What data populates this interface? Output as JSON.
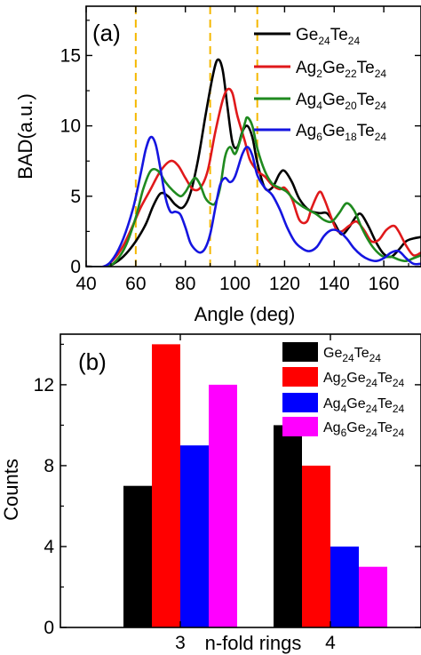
{
  "chart_data": [
    {
      "type": "line",
      "panel_label": "(a)",
      "xlabel": "Angle (deg)",
      "ylabel": "BAD(a.u.)",
      "xlim": [
        40,
        175
      ],
      "ylim": [
        0,
        18.5
      ],
      "xticks": [
        40,
        60,
        80,
        100,
        120,
        140,
        160
      ],
      "yticks": [
        0,
        5,
        10,
        15
      ],
      "legend_position": "top-right",
      "reference_lines": [
        {
          "x": 60,
          "color": "#f5b800",
          "style": "dashed"
        },
        {
          "x": 90,
          "color": "#f5b800",
          "style": "dashed"
        },
        {
          "x": 109,
          "color": "#f5b800",
          "style": "dashed"
        }
      ],
      "series": [
        {
          "name": "Ge24Te24",
          "legend": [
            {
              "t": "Ge"
            },
            {
              "t": "24",
              "sub": true
            },
            {
              "t": "Te"
            },
            {
              "t": "24",
              "sub": true
            }
          ],
          "color": "#000000",
          "points": [
            [
              40,
              0
            ],
            [
              48,
              0
            ],
            [
              52,
              0.3
            ],
            [
              56,
              0.9
            ],
            [
              60,
              1.8
            ],
            [
              64,
              3.0
            ],
            [
              67,
              4.3
            ],
            [
              70,
              5.2
            ],
            [
              73,
              5.0
            ],
            [
              76,
              4.4
            ],
            [
              79,
              4.2
            ],
            [
              82,
              5.2
            ],
            [
              85,
              7.5
            ],
            [
              88,
              10.6
            ],
            [
              91,
              13.5
            ],
            [
              93,
              14.7
            ],
            [
              95,
              14.0
            ],
            [
              97,
              11.3
            ],
            [
              99,
              8.8
            ],
            [
              101,
              8.5
            ],
            [
              103,
              9.6
            ],
            [
              105,
              10.0
            ],
            [
              107,
              9.2
            ],
            [
              109,
              7.4
            ],
            [
              112,
              5.6
            ],
            [
              115,
              5.6
            ],
            [
              118,
              6.6
            ],
            [
              120,
              6.8
            ],
            [
              123,
              6.0
            ],
            [
              126,
              4.8
            ],
            [
              130,
              4.0
            ],
            [
              134,
              3.8
            ],
            [
              137,
              3.8
            ],
            [
              140,
              3.1
            ],
            [
              143,
              2.3
            ],
            [
              146,
              2.8
            ],
            [
              149,
              3.6
            ],
            [
              151,
              3.7
            ],
            [
              154,
              2.8
            ],
            [
              157,
              1.7
            ],
            [
              160,
              0.9
            ],
            [
              163,
              0.7
            ],
            [
              166,
              1.2
            ],
            [
              169,
              1.8
            ],
            [
              172,
              2.0
            ],
            [
              175,
              2.1
            ]
          ]
        },
        {
          "name": "Ag2Ge22Te24",
          "legend": [
            {
              "t": "Ag"
            },
            {
              "t": "2",
              "sub": true
            },
            {
              "t": "Ge"
            },
            {
              "t": "22",
              "sub": true
            },
            {
              "t": "Te"
            },
            {
              "t": "24",
              "sub": true
            }
          ],
          "color": "#e0191b",
          "points": [
            [
              40,
              0
            ],
            [
              47,
              0
            ],
            [
              51,
              0.5
            ],
            [
              55,
              1.5
            ],
            [
              59,
              3.0
            ],
            [
              62,
              4.2
            ],
            [
              66,
              5.5
            ],
            [
              70,
              6.8
            ],
            [
              74,
              7.5
            ],
            [
              77,
              7.2
            ],
            [
              80,
              6.3
            ],
            [
              83,
              5.5
            ],
            [
              86,
              5.6
            ],
            [
              89,
              6.8
            ],
            [
              92,
              9.5
            ],
            [
              95,
              11.8
            ],
            [
              97,
              12.6
            ],
            [
              99,
              12.3
            ],
            [
              101,
              10.7
            ],
            [
              104,
              8.9
            ],
            [
              106,
              7.6
            ],
            [
              109,
              6.8
            ],
            [
              112,
              6.4
            ],
            [
              115,
              5.8
            ],
            [
              118,
              5.5
            ],
            [
              120,
              5.6
            ],
            [
              123,
              4.8
            ],
            [
              126,
              3.3
            ],
            [
              129,
              3.2
            ],
            [
              131,
              4.2
            ],
            [
              134,
              5.3
            ],
            [
              136,
              4.8
            ],
            [
              139,
              3.4
            ],
            [
              141,
              2.6
            ],
            [
              143,
              2.5
            ],
            [
              146,
              2.9
            ],
            [
              149,
              3.2
            ],
            [
              152,
              2.6
            ],
            [
              155,
              1.8
            ],
            [
              158,
              1.9
            ],
            [
              161,
              2.6
            ],
            [
              164,
              2.9
            ],
            [
              166,
              2.5
            ],
            [
              169,
              1.5
            ],
            [
              172,
              0.8
            ],
            [
              175,
              1.0
            ]
          ]
        },
        {
          "name": "Ag4Ge20Te24",
          "legend": [
            {
              "t": "Ag"
            },
            {
              "t": "4",
              "sub": true
            },
            {
              "t": "Ge"
            },
            {
              "t": "20",
              "sub": true
            },
            {
              "t": "Te"
            },
            {
              "t": "24",
              "sub": true
            }
          ],
          "color": "#1f8a1f",
          "points": [
            [
              40,
              0
            ],
            [
              48,
              0
            ],
            [
              52,
              0.4
            ],
            [
              56,
              1.5
            ],
            [
              60,
              3.5
            ],
            [
              63,
              5.5
            ],
            [
              66,
              6.8
            ],
            [
              69,
              6.8
            ],
            [
              72,
              6.0
            ],
            [
              75,
              5.4
            ],
            [
              78,
              5.0
            ],
            [
              80,
              5.3
            ],
            [
              82,
              5.9
            ],
            [
              84,
              6.3
            ],
            [
              86,
              5.8
            ],
            [
              88,
              4.9
            ],
            [
              90,
              4.5
            ],
            [
              92,
              4.5
            ],
            [
              94,
              5.6
            ],
            [
              96,
              7.8
            ],
            [
              98,
              8.5
            ],
            [
              100,
              8.0
            ],
            [
              102,
              8.9
            ],
            [
              104,
              10.2
            ],
            [
              105,
              10.6
            ],
            [
              107,
              10.0
            ],
            [
              109,
              8.4
            ],
            [
              112,
              6.8
            ],
            [
              115,
              5.9
            ],
            [
              118,
              5.6
            ],
            [
              121,
              5.3
            ],
            [
              124,
              4.7
            ],
            [
              127,
              4.3
            ],
            [
              130,
              4.0
            ],
            [
              133,
              3.7
            ],
            [
              136,
              3.3
            ],
            [
              139,
              3.2
            ],
            [
              142,
              3.8
            ],
            [
              145,
              4.5
            ],
            [
              148,
              4.0
            ],
            [
              151,
              2.8
            ],
            [
              154,
              1.8
            ],
            [
              157,
              1.1
            ],
            [
              160,
              0.7
            ],
            [
              163,
              0.7
            ],
            [
              166,
              0.5
            ],
            [
              169,
              0.4
            ],
            [
              172,
              0.6
            ],
            [
              175,
              0.8
            ]
          ]
        },
        {
          "name": "Ag6Ge18Te24",
          "legend": [
            {
              "t": "Ag"
            },
            {
              "t": "6",
              "sub": true
            },
            {
              "t": "Ge"
            },
            {
              "t": "18",
              "sub": true
            },
            {
              "t": "Te"
            },
            {
              "t": "24",
              "sub": true
            }
          ],
          "color": "#1515e0",
          "points": [
            [
              40,
              0
            ],
            [
              47,
              0
            ],
            [
              51,
              0.6
            ],
            [
              55,
              2.0
            ],
            [
              59,
              4.2
            ],
            [
              62,
              6.6
            ],
            [
              64,
              8.3
            ],
            [
              66,
              9.2
            ],
            [
              68,
              8.7
            ],
            [
              70,
              6.9
            ],
            [
              72,
              4.9
            ],
            [
              74,
              3.9
            ],
            [
              76,
              3.9
            ],
            [
              78,
              3.7
            ],
            [
              80,
              2.8
            ],
            [
              82,
              1.7
            ],
            [
              84,
              1.2
            ],
            [
              86,
              1.0
            ],
            [
              88,
              1.3
            ],
            [
              90,
              2.3
            ],
            [
              92,
              4.1
            ],
            [
              94,
              5.8
            ],
            [
              96,
              6.3
            ],
            [
              98,
              6.0
            ],
            [
              100,
              6.4
            ],
            [
              103,
              8.0
            ],
            [
              105,
              8.5
            ],
            [
              107,
              7.9
            ],
            [
              109,
              6.5
            ],
            [
              112,
              5.6
            ],
            [
              115,
              5.1
            ],
            [
              118,
              4.1
            ],
            [
              121,
              2.8
            ],
            [
              124,
              1.8
            ],
            [
              127,
              1.3
            ],
            [
              130,
              1.1
            ],
            [
              133,
              1.4
            ],
            [
              136,
              2.2
            ],
            [
              139,
              2.6
            ],
            [
              142,
              2.5
            ],
            [
              145,
              2.0
            ],
            [
              148,
              1.3
            ],
            [
              151,
              0.8
            ],
            [
              154,
              0.5
            ],
            [
              157,
              0.4
            ],
            [
              160,
              0.6
            ],
            [
              163,
              1.0
            ],
            [
              166,
              1.1
            ],
            [
              169,
              0.6
            ],
            [
              172,
              0.2
            ],
            [
              175,
              0.2
            ]
          ]
        }
      ]
    },
    {
      "type": "bar",
      "panel_label": "(b)",
      "xlabel": "n-fold rings",
      "ylabel": "Counts",
      "categories": [
        "3",
        "4"
      ],
      "ylim": [
        0,
        14.5
      ],
      "yticks": [
        0,
        4,
        8,
        12
      ],
      "legend_position": "top-right",
      "series": [
        {
          "name": "Ge24Te24",
          "legend": [
            {
              "t": "Ge"
            },
            {
              "t": "24",
              "sub": true
            },
            {
              "t": "Te"
            },
            {
              "t": "24",
              "sub": true
            }
          ],
          "color": "#000000",
          "values": [
            7,
            10
          ]
        },
        {
          "name": "Ag2Ge24Te24",
          "legend": [
            {
              "t": "Ag"
            },
            {
              "t": "2",
              "sub": true
            },
            {
              "t": "Ge"
            },
            {
              "t": "24",
              "sub": true
            },
            {
              "t": "Te"
            },
            {
              "t": "24",
              "sub": true
            }
          ],
          "color": "#ff0000",
          "values": [
            14,
            8
          ]
        },
        {
          "name": "Ag4Ge24Te24",
          "legend": [
            {
              "t": "Ag"
            },
            {
              "t": "4",
              "sub": true
            },
            {
              "t": "Ge"
            },
            {
              "t": "24",
              "sub": true
            },
            {
              "t": "Te"
            },
            {
              "t": "24",
              "sub": true
            }
          ],
          "color": "#0000ff",
          "values": [
            9,
            4
          ]
        },
        {
          "name": "Ag6Ge24Te24",
          "legend": [
            {
              "t": "Ag"
            },
            {
              "t": "6",
              "sub": true
            },
            {
              "t": "Ge"
            },
            {
              "t": "24",
              "sub": true
            },
            {
              "t": "Te"
            },
            {
              "t": "24",
              "sub": true
            }
          ],
          "color": "#ff00ff",
          "values": [
            12,
            3
          ]
        }
      ]
    }
  ]
}
